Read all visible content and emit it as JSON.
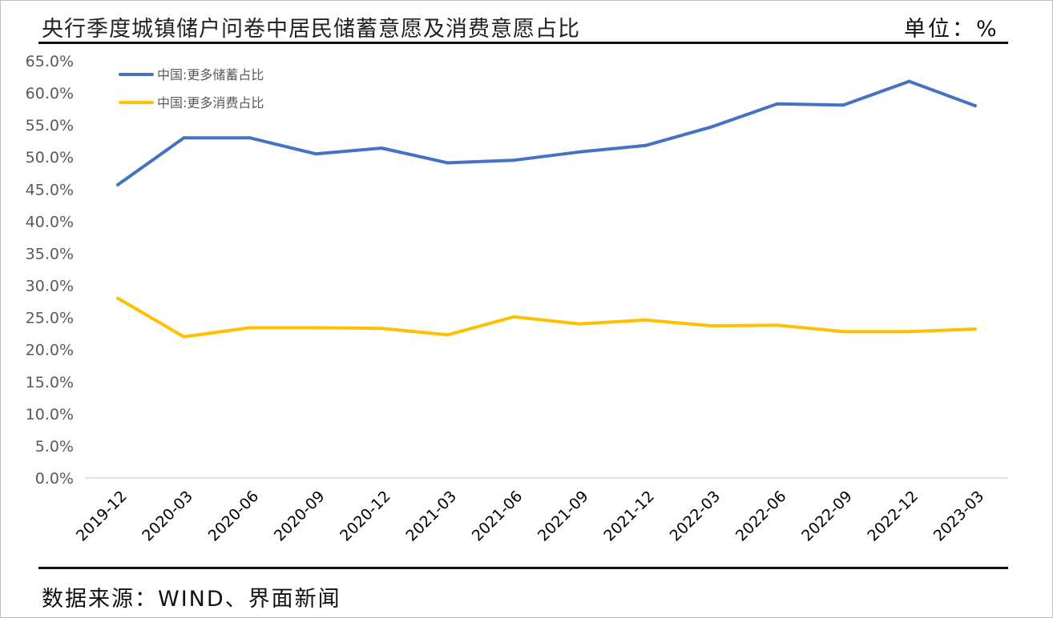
{
  "header": {
    "title": "央行季度城镇储户问卷中居民储蓄意愿及消费意愿占比",
    "unit": "单位：%"
  },
  "footer": {
    "source": "数据来源：WIND、界面新闻"
  },
  "colors": {
    "savings": "#4472C4",
    "consumption": "#FFC000",
    "axis": "#d9d9d9",
    "rule": "#111111"
  },
  "chart_data": {
    "type": "line",
    "title": "央行季度城镇储户问卷中居民储蓄意愿及消费意愿占比",
    "xlabel": "",
    "ylabel": "",
    "ylim": [
      0,
      65
    ],
    "y_tick_step": 5,
    "y_tick_labels": [
      "0.0%",
      "5.0%",
      "10.0%",
      "15.0%",
      "20.0%",
      "25.0%",
      "30.0%",
      "35.0%",
      "40.0%",
      "45.0%",
      "50.0%",
      "55.0%",
      "60.0%",
      "65.0%"
    ],
    "grid": false,
    "legend_position": "top-left",
    "categories": [
      "2019-12",
      "2020-03",
      "2020-06",
      "2020-09",
      "2020-12",
      "2021-03",
      "2021-06",
      "2021-09",
      "2021-12",
      "2022-03",
      "2022-06",
      "2022-09",
      "2022-12",
      "2023-03"
    ],
    "series": [
      {
        "name": "中国:更多储蓄占比",
        "color": "#4472C4",
        "values": [
          45.7,
          53.0,
          53.0,
          50.5,
          51.4,
          49.1,
          49.5,
          50.8,
          51.8,
          54.7,
          58.3,
          58.1,
          61.8,
          58.0
        ]
      },
      {
        "name": "中国:更多消费占比",
        "color": "#FFC000",
        "values": [
          28.0,
          22.0,
          23.4,
          23.4,
          23.3,
          22.3,
          25.1,
          24.0,
          24.6,
          23.7,
          23.8,
          22.8,
          22.8,
          23.2
        ]
      }
    ]
  }
}
